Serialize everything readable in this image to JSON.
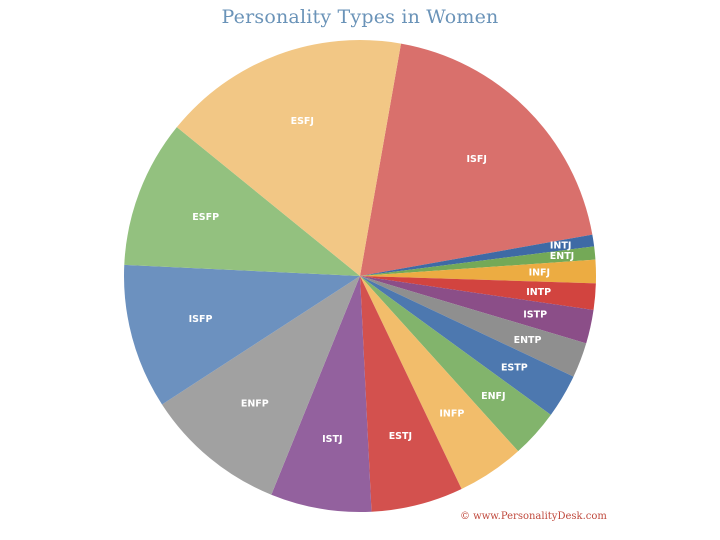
{
  "chart_data": {
    "type": "pie",
    "title": "Personality Types in Women",
    "start_angle_deg": 80,
    "slices": [
      {
        "label": "ISFJ",
        "value": 19.4,
        "color": "#d9706c"
      },
      {
        "label": "INTJ",
        "value": 0.8,
        "color": "#3e6aa5"
      },
      {
        "label": "ENTJ",
        "value": 0.9,
        "color": "#74a957"
      },
      {
        "label": "INFJ",
        "value": 1.6,
        "color": "#ecac42"
      },
      {
        "label": "INTP",
        "value": 1.8,
        "color": "#d2443f"
      },
      {
        "label": "ISTP",
        "value": 2.3,
        "color": "#8b4e88"
      },
      {
        "label": "ENTP",
        "value": 2.4,
        "color": "#8f8f8f"
      },
      {
        "label": "ESTP",
        "value": 3.0,
        "color": "#4d78af"
      },
      {
        "label": "ENFJ",
        "value": 3.3,
        "color": "#82b46c"
      },
      {
        "label": "INFP",
        "value": 4.6,
        "color": "#f2bd6b"
      },
      {
        "label": "ESTJ",
        "value": 6.3,
        "color": "#d3514e"
      },
      {
        "label": "ISTJ",
        "value": 6.9,
        "color": "#93619e"
      },
      {
        "label": "ENFP",
        "value": 9.7,
        "color": "#a1a1a1"
      },
      {
        "label": "ISFP",
        "value": 9.9,
        "color": "#6c91bf"
      },
      {
        "label": "ESFP",
        "value": 10.1,
        "color": "#93c17f"
      },
      {
        "label": "ESFJ",
        "value": 16.9,
        "color": "#f2c785"
      }
    ],
    "legend": "none",
    "grid": false
  },
  "footer": {
    "copyright": "© www.PersonalityDesk.com"
  }
}
